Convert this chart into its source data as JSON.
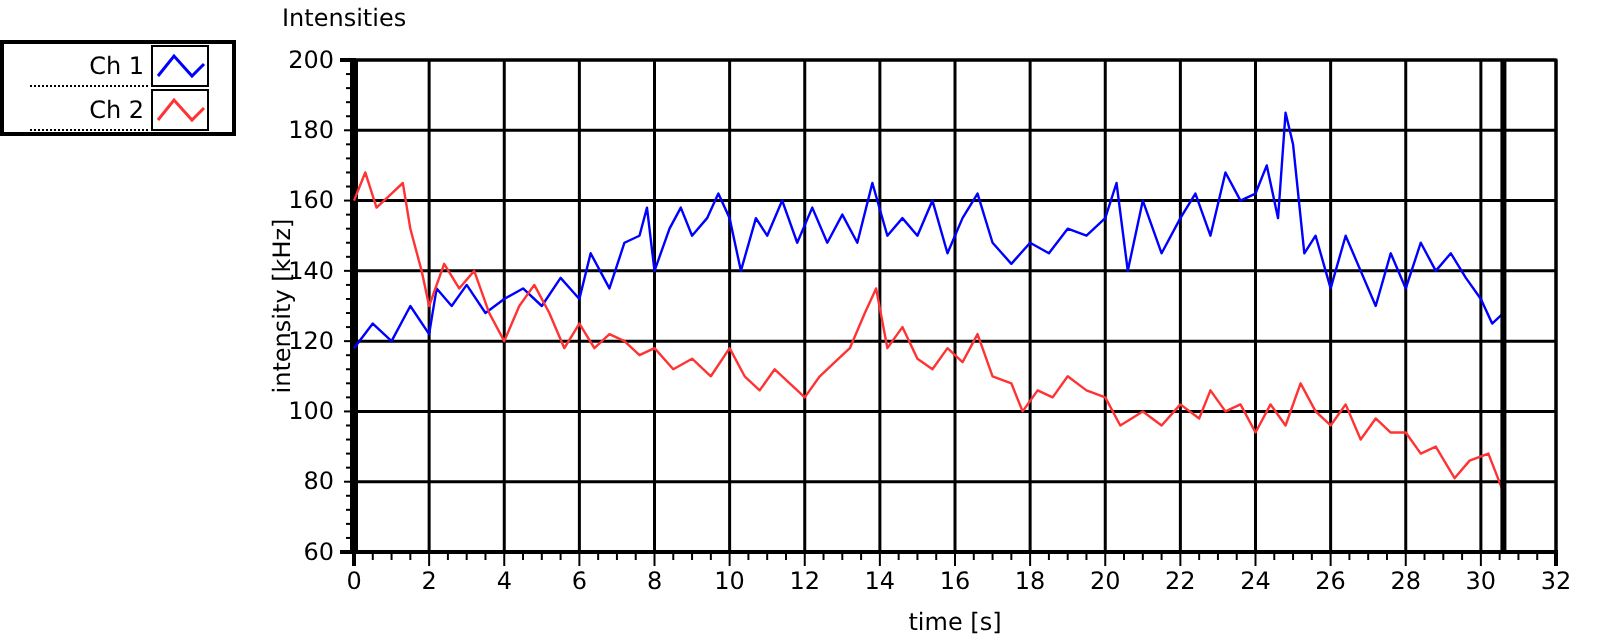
{
  "chart_data": {
    "type": "line",
    "title": "Intensities",
    "xlabel": "time [s]",
    "ylabel": "intensity [kHz]",
    "xlim": [
      0,
      32
    ],
    "xticks": [
      0,
      2,
      4,
      6,
      8,
      10,
      12,
      14,
      16,
      18,
      20,
      22,
      24,
      26,
      28,
      30,
      32
    ],
    "ylim": [
      60,
      200
    ],
    "yticks": [
      60,
      80,
      100,
      120,
      140,
      160,
      180,
      200
    ],
    "grid": true,
    "legend": "top left",
    "line_style": "solid",
    "ref_lines": [
      {
        "axis": "x",
        "value": 30.6,
        "color": "#000000"
      }
    ],
    "series": [
      {
        "name": "Ch 1",
        "color": "#0000ff",
        "x": [
          0,
          0.5,
          1,
          1.5,
          2,
          2.2,
          2.6,
          3,
          3.5,
          4,
          4.5,
          5,
          5.5,
          6,
          6.3,
          6.8,
          7.2,
          7.6,
          7.8,
          8,
          8.4,
          8.7,
          9,
          9.4,
          9.7,
          10,
          10.3,
          10.7,
          11,
          11.4,
          11.8,
          12.2,
          12.6,
          13,
          13.4,
          13.8,
          14.2,
          14.6,
          15,
          15.4,
          15.8,
          16.2,
          16.6,
          17,
          17.5,
          18,
          18.5,
          19,
          19.5,
          20,
          20.3,
          20.6,
          21,
          21.5,
          22,
          22.4,
          22.8,
          23.2,
          23.6,
          24,
          24.3,
          24.6,
          24.8,
          25,
          25.3,
          25.6,
          26,
          26.4,
          26.8,
          27.2,
          27.6,
          28,
          28.4,
          28.8,
          29.2,
          29.6,
          30,
          30.3,
          30.6
        ],
        "values": [
          118,
          125,
          120,
          130,
          122,
          135,
          130,
          136,
          128,
          132,
          135,
          130,
          138,
          132,
          145,
          135,
          148,
          150,
          158,
          140,
          152,
          158,
          150,
          155,
          162,
          155,
          140,
          155,
          150,
          160,
          148,
          158,
          148,
          156,
          148,
          165,
          150,
          155,
          150,
          160,
          145,
          155,
          162,
          148,
          142,
          148,
          145,
          152,
          150,
          155,
          165,
          140,
          160,
          145,
          155,
          162,
          150,
          168,
          160,
          162,
          170,
          155,
          185,
          176,
          145,
          150,
          135,
          150,
          140,
          130,
          145,
          135,
          148,
          140,
          145,
          138,
          132,
          125,
          128
        ]
      },
      {
        "name": "Ch 2",
        "color": "#ff3333",
        "x": [
          0,
          0.3,
          0.6,
          1,
          1.3,
          1.5,
          1.8,
          2,
          2.4,
          2.8,
          3.2,
          3.6,
          4,
          4.4,
          4.8,
          5.2,
          5.6,
          6,
          6.4,
          6.8,
          7.2,
          7.6,
          8,
          8.5,
          9,
          9.5,
          10,
          10.4,
          10.8,
          11.2,
          11.6,
          12,
          12.4,
          12.8,
          13.2,
          13.6,
          13.9,
          14.2,
          14.6,
          15,
          15.4,
          15.8,
          16.2,
          16.6,
          17,
          17.5,
          17.8,
          18.2,
          18.6,
          19,
          19.5,
          20,
          20.4,
          21,
          21.5,
          22,
          22.5,
          22.8,
          23.2,
          23.6,
          24,
          24.4,
          24.8,
          25.2,
          25.6,
          26,
          26.4,
          26.8,
          27.2,
          27.6,
          28,
          28.4,
          28.8,
          29.3,
          29.7,
          30.2,
          30.6
        ],
        "values": [
          160,
          168,
          158,
          162,
          165,
          152,
          140,
          130,
          142,
          135,
          140,
          128,
          120,
          130,
          136,
          128,
          118,
          125,
          118,
          122,
          120,
          116,
          118,
          112,
          115,
          110,
          118,
          110,
          106,
          112,
          108,
          104,
          110,
          114,
          118,
          128,
          135,
          118,
          124,
          115,
          112,
          118,
          114,
          122,
          110,
          108,
          100,
          106,
          104,
          110,
          106,
          104,
          96,
          100,
          96,
          102,
          98,
          106,
          100,
          102,
          94,
          102,
          96,
          108,
          100,
          96,
          102,
          92,
          98,
          94,
          94,
          88,
          90,
          81,
          86,
          88,
          77
        ]
      }
    ]
  }
}
